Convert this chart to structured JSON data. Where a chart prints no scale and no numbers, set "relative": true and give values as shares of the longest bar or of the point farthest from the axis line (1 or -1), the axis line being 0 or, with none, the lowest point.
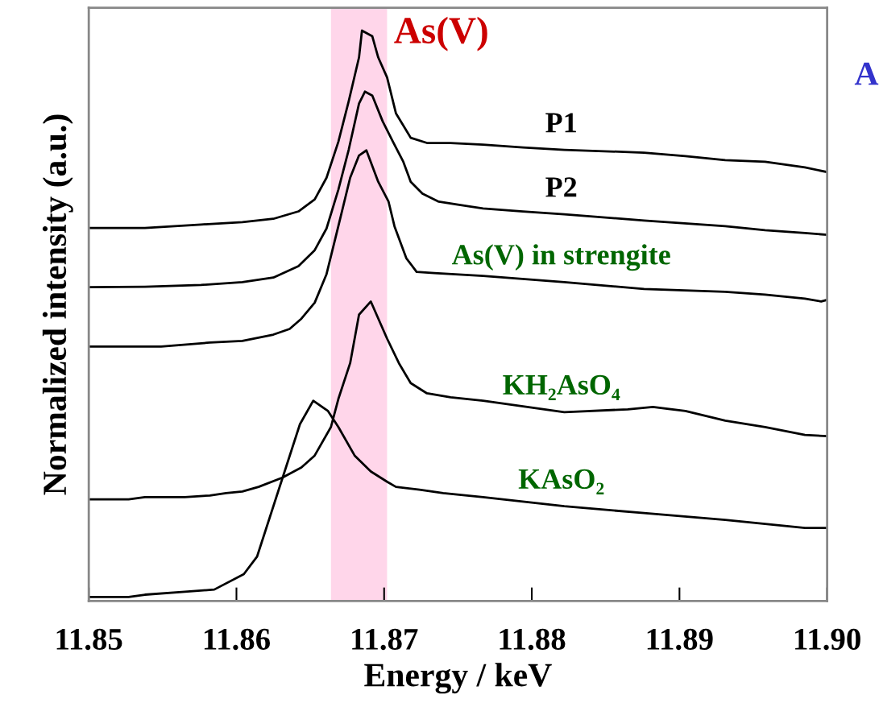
{
  "chart_data": {
    "type": "line",
    "relative": true,
    "xlabel": "Energy / keV",
    "ylabel": "Normalized intensity (a.u.)",
    "xlim": [
      11.85,
      11.9
    ],
    "xticks": [
      {
        "value": 11.85,
        "label": "11.85"
      },
      {
        "value": 11.86,
        "label": "11.86"
      },
      {
        "value": 11.87,
        "label": "11.87"
      },
      {
        "value": 11.88,
        "label": "11.88"
      },
      {
        "value": 11.89,
        "label": "11.89"
      },
      {
        "value": 11.9,
        "label": "11.90"
      }
    ],
    "tick_labels": "x",
    "grid": false,
    "legend": false,
    "marker": "none",
    "line_style": "solid",
    "bands": [
      {
        "axis": "x",
        "from": 11.8664,
        "to": 11.8702,
        "label": "As(V)",
        "color": "#ffd6ea"
      }
    ],
    "annotations": [
      "A"
    ],
    "series": [
      {
        "name": "P1",
        "color": "#000000",
        "x": [
          11.85,
          11.8538,
          11.8576,
          11.8604,
          11.8625,
          11.8642,
          11.8653,
          11.8661,
          11.8669,
          11.8676,
          11.8683,
          11.8685,
          11.8692,
          11.8696,
          11.8702,
          11.8708,
          11.8718,
          11.8729,
          11.8745,
          11.8767,
          11.8794,
          11.8822,
          11.8876,
          11.8904,
          11.8931,
          11.8958,
          11.8985,
          11.9
        ],
        "values": [
          0.654,
          0.654,
          0.66,
          0.664,
          0.67,
          0.683,
          0.704,
          0.742,
          0.805,
          0.876,
          0.953,
          1,
          0.99,
          0.953,
          0.918,
          0.855,
          0.812,
          0.803,
          0.803,
          0.8,
          0.795,
          0.791,
          0.786,
          0.78,
          0.773,
          0.77,
          0.76,
          0.752
        ]
      },
      {
        "name": "P2",
        "color": "#000000",
        "x": [
          11.85,
          11.8538,
          11.8576,
          11.8604,
          11.8625,
          11.8642,
          11.8653,
          11.8661,
          11.8669,
          11.8676,
          11.8683,
          11.8687,
          11.8692,
          11.8699,
          11.8706,
          11.8713,
          11.8718,
          11.8726,
          11.8737,
          11.8767,
          11.8794,
          11.8822,
          11.8876,
          11.8931,
          11.8958,
          11.8985,
          11.9
        ],
        "values": [
          0.55,
          0.551,
          0.554,
          0.559,
          0.567,
          0.587,
          0.615,
          0.653,
          0.721,
          0.791,
          0.872,
          0.893,
          0.886,
          0.841,
          0.805,
          0.77,
          0.735,
          0.714,
          0.7,
          0.688,
          0.683,
          0.678,
          0.667,
          0.657,
          0.65,
          0.645,
          0.642
        ]
      },
      {
        "name": "As(V) in strengite",
        "color": "#000000",
        "x": [
          11.85,
          11.8549,
          11.8582,
          11.8604,
          11.8625,
          11.8636,
          11.8644,
          11.8653,
          11.8661,
          11.8669,
          11.8677,
          11.8683,
          11.8688,
          11.8696,
          11.8703,
          11.8707,
          11.8715,
          11.8722,
          11.8734,
          11.8767,
          11.8822,
          11.8876,
          11.8931,
          11.8958,
          11.8985,
          11.8996,
          11.9
        ],
        "values": [
          0.446,
          0.446,
          0.453,
          0.456,
          0.467,
          0.477,
          0.495,
          0.523,
          0.573,
          0.657,
          0.742,
          0.781,
          0.79,
          0.735,
          0.7,
          0.657,
          0.601,
          0.577,
          0.575,
          0.57,
          0.559,
          0.547,
          0.542,
          0.537,
          0.53,
          0.525,
          0.528
        ]
      },
      {
        "name": "KH₂AsO₄",
        "color": "#000000",
        "x": [
          11.85,
          11.8527,
          11.8538,
          11.8565,
          11.8582,
          11.8593,
          11.8604,
          11.8615,
          11.8631,
          11.8644,
          11.8653,
          11.8664,
          11.8669,
          11.8677,
          11.8683,
          11.8691,
          11.8702,
          11.871,
          11.8718,
          11.8729,
          11.8745,
          11.8767,
          11.8822,
          11.8865,
          11.8882,
          11.8904,
          11.8931,
          11.8958,
          11.8985,
          11.9
        ],
        "values": [
          0.178,
          0.178,
          0.182,
          0.182,
          0.185,
          0.189,
          0.192,
          0.2,
          0.216,
          0.234,
          0.255,
          0.305,
          0.354,
          0.417,
          0.502,
          0.525,
          0.46,
          0.417,
          0.382,
          0.364,
          0.357,
          0.351,
          0.331,
          0.336,
          0.34,
          0.333,
          0.316,
          0.305,
          0.291,
          0.289
        ]
      },
      {
        "name": "KAsO₂",
        "color": "#000000",
        "x": [
          11.85,
          11.8527,
          11.8538,
          11.8565,
          11.8585,
          11.8605,
          11.8614,
          11.8643,
          11.8652,
          11.8662,
          11.8669,
          11.868,
          11.8691,
          11.8702,
          11.8708,
          11.8724,
          11.874,
          11.8767,
          11.8822,
          11.8876,
          11.8931,
          11.8985,
          11.9
        ],
        "values": [
          0.007,
          0.007,
          0.011,
          0.016,
          0.02,
          0.047,
          0.078,
          0.31,
          0.351,
          0.333,
          0.305,
          0.255,
          0.227,
          0.209,
          0.2,
          0.195,
          0.189,
          0.182,
          0.166,
          0.154,
          0.142,
          0.128,
          0.128
        ]
      }
    ]
  }
}
